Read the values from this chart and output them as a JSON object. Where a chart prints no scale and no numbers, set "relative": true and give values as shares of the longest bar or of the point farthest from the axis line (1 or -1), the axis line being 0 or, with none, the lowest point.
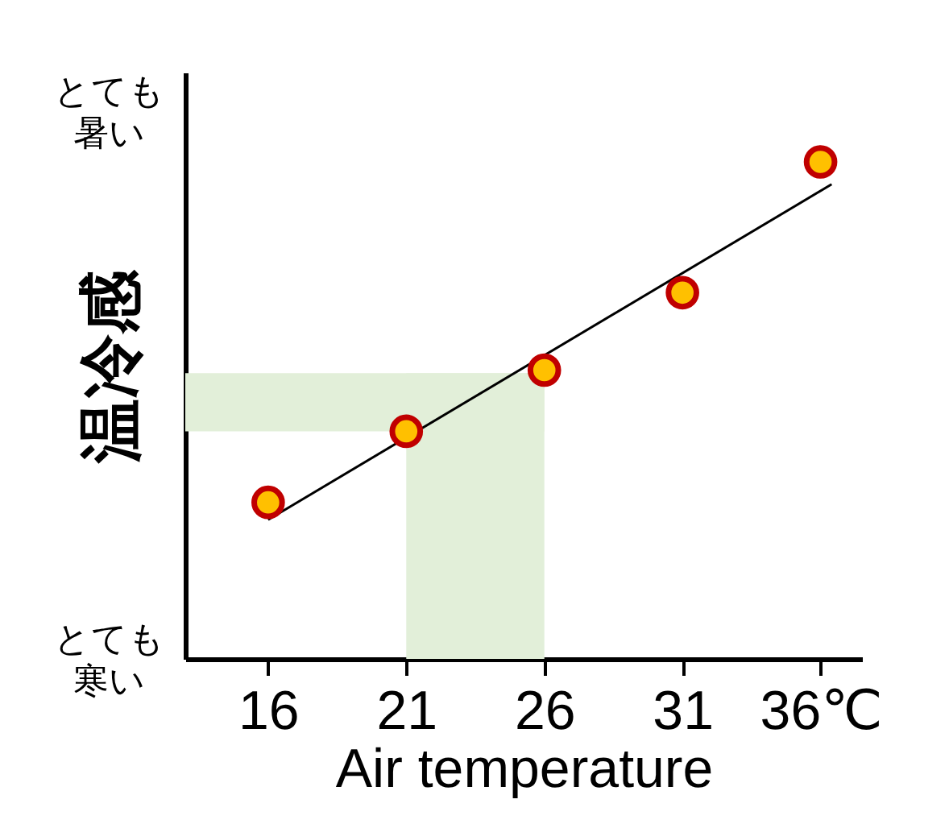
{
  "chart_data": {
    "type": "scatter",
    "relative": true,
    "xlabel": "Air temperature",
    "ylabel": "温冷感",
    "xlim": [
      13,
      37.5
    ],
    "xticks": [
      16,
      21,
      26,
      31,
      {
        "value": 36,
        "label": "36℃"
      }
    ],
    "series": [
      {
        "marker": "circle",
        "color": "#ffc000",
        "x": [
          16,
          21,
          26,
          31,
          36
        ],
        "values": [
          0.315,
          0.458,
          0.581,
          0.737,
          1
        ]
      },
      {
        "type": "line",
        "color": "#000000",
        "x": [
          16,
          36.4
        ],
        "values": [
          0.28,
          0.955
        ]
      }
    ],
    "bands": [
      {
        "axis": "x",
        "from": 21,
        "to": 26,
        "color": "#e2efd9"
      },
      {
        "axis": "y",
        "from": 0.458,
        "to": 0.575,
        "color": "#e2efd9"
      }
    ],
    "annotations": [
      "とても暑い",
      "とても寒い"
    ],
    "grid": false
  }
}
